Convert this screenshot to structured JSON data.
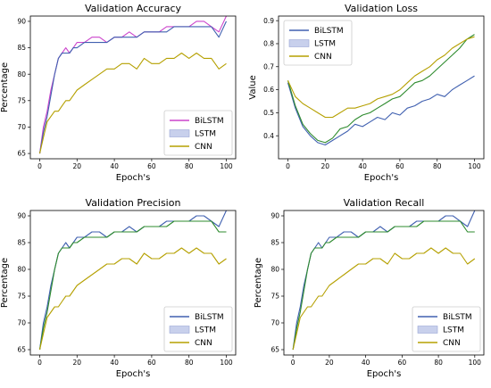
{
  "chart_data": [
    {
      "type": "line",
      "title": "Validation Accuracy",
      "xlabel": "Epoch's",
      "ylabel": "Percentage",
      "xlim": [
        -5,
        105
      ],
      "ylim": [
        64,
        91
      ],
      "xticks": [
        0,
        20,
        40,
        60,
        80,
        100
      ],
      "yticks": [
        65,
        70,
        75,
        80,
        85,
        90
      ],
      "legend": "bottom-right",
      "legend_swatch": [
        "line",
        "patch",
        "line"
      ],
      "series": [
        {
          "name": "BiLSTM",
          "color": "#cc44cc",
          "x": [
            0,
            2,
            4,
            6,
            8,
            10,
            12,
            14,
            16,
            18,
            20,
            24,
            28,
            32,
            36,
            40,
            44,
            48,
            52,
            56,
            60,
            64,
            68,
            72,
            76,
            80,
            84,
            88,
            92,
            96,
            100
          ],
          "y": [
            65,
            70,
            73,
            77,
            80,
            83,
            84,
            85,
            84,
            85,
            86,
            86,
            87,
            87,
            86,
            87,
            87,
            88,
            87,
            88,
            88,
            88,
            89,
            89,
            89,
            89,
            90,
            90,
            89,
            88,
            91
          ]
        },
        {
          "name": "LSTM",
          "color": "#4060b0",
          "x": [
            0,
            2,
            4,
            6,
            8,
            10,
            12,
            14,
            16,
            18,
            20,
            24,
            28,
            32,
            36,
            40,
            44,
            48,
            52,
            56,
            60,
            64,
            68,
            72,
            76,
            80,
            84,
            88,
            92,
            96,
            100
          ],
          "y": [
            65,
            69,
            72,
            76,
            80,
            83,
            84,
            84,
            84,
            85,
            85,
            86,
            86,
            86,
            86,
            87,
            87,
            87,
            87,
            88,
            88,
            88,
            88,
            89,
            89,
            89,
            89,
            89,
            89,
            87,
            90
          ]
        },
        {
          "name": "CNN",
          "color": "#b5a000",
          "x": [
            0,
            2,
            4,
            6,
            8,
            10,
            12,
            14,
            16,
            18,
            20,
            24,
            28,
            32,
            36,
            40,
            44,
            48,
            52,
            56,
            60,
            64,
            68,
            72,
            76,
            80,
            84,
            88,
            92,
            96,
            100
          ],
          "y": [
            65,
            68,
            71,
            72,
            73,
            73,
            74,
            75,
            75,
            76,
            77,
            78,
            79,
            80,
            81,
            81,
            82,
            82,
            81,
            83,
            82,
            82,
            83,
            83,
            84,
            83,
            84,
            83,
            83,
            81,
            82
          ]
        }
      ]
    },
    {
      "type": "line",
      "title": "Validation Loss",
      "xlabel": "Epoch's",
      "ylabel": "Value",
      "xlim": [
        -5,
        105
      ],
      "ylim": [
        0.3,
        0.92
      ],
      "xticks": [
        0,
        20,
        40,
        60,
        80,
        100
      ],
      "yticks": [
        0.4,
        0.5,
        0.6,
        0.7,
        0.8,
        0.9
      ],
      "legend": "top-left",
      "legend_swatch": [
        "line",
        "patch",
        "line"
      ],
      "series": [
        {
          "name": "BiLSTM",
          "color": "#4060b0",
          "x": [
            0,
            4,
            8,
            12,
            16,
            20,
            24,
            28,
            32,
            36,
            40,
            44,
            48,
            52,
            56,
            60,
            64,
            68,
            72,
            76,
            80,
            84,
            88,
            92,
            96,
            100
          ],
          "y": [
            0.63,
            0.52,
            0.44,
            0.4,
            0.37,
            0.36,
            0.38,
            0.4,
            0.42,
            0.45,
            0.44,
            0.46,
            0.48,
            0.47,
            0.5,
            0.49,
            0.52,
            0.53,
            0.55,
            0.56,
            0.58,
            0.57,
            0.6,
            0.62,
            0.64,
            0.66
          ]
        },
        {
          "name": "LSTM",
          "color": "#2e8b2e",
          "x": [
            0,
            4,
            8,
            12,
            16,
            20,
            24,
            28,
            32,
            36,
            40,
            44,
            48,
            52,
            56,
            60,
            64,
            68,
            72,
            76,
            80,
            84,
            88,
            92,
            96,
            100
          ],
          "y": [
            0.64,
            0.53,
            0.45,
            0.41,
            0.38,
            0.37,
            0.39,
            0.43,
            0.44,
            0.47,
            0.49,
            0.5,
            0.52,
            0.54,
            0.56,
            0.57,
            0.6,
            0.63,
            0.64,
            0.66,
            0.69,
            0.72,
            0.75,
            0.78,
            0.82,
            0.84
          ]
        },
        {
          "name": "CNN",
          "color": "#b5a000",
          "x": [
            0,
            4,
            8,
            12,
            16,
            20,
            24,
            28,
            32,
            36,
            40,
            44,
            48,
            52,
            56,
            60,
            64,
            68,
            72,
            76,
            80,
            84,
            88,
            92,
            96,
            100
          ],
          "y": [
            0.64,
            0.57,
            0.54,
            0.52,
            0.5,
            0.48,
            0.48,
            0.5,
            0.52,
            0.52,
            0.53,
            0.54,
            0.56,
            0.57,
            0.58,
            0.6,
            0.63,
            0.66,
            0.68,
            0.7,
            0.73,
            0.75,
            0.78,
            0.8,
            0.82,
            0.83
          ]
        }
      ]
    },
    {
      "type": "line",
      "title": "Validation Precision",
      "xlabel": "Epoch's",
      "ylabel": "Percentage",
      "xlim": [
        -5,
        105
      ],
      "ylim": [
        64,
        91
      ],
      "xticks": [
        0,
        20,
        40,
        60,
        80,
        100
      ],
      "yticks": [
        65,
        70,
        75,
        80,
        85,
        90
      ],
      "legend": "bottom-right",
      "legend_swatch": [
        "line",
        "patch",
        "line"
      ],
      "series": [
        {
          "name": "BiLSTM",
          "color": "#4060b0",
          "x": [
            0,
            2,
            4,
            6,
            8,
            10,
            12,
            14,
            16,
            18,
            20,
            24,
            28,
            32,
            36,
            40,
            44,
            48,
            52,
            56,
            60,
            64,
            68,
            72,
            76,
            80,
            84,
            88,
            92,
            96,
            100
          ],
          "y": [
            65,
            70,
            73,
            77,
            80,
            83,
            84,
            85,
            84,
            85,
            86,
            86,
            87,
            87,
            86,
            87,
            87,
            88,
            87,
            88,
            88,
            88,
            89,
            89,
            89,
            89,
            90,
            90,
            89,
            88,
            91
          ]
        },
        {
          "name": "LSTM",
          "color": "#2e8b2e",
          "x": [
            0,
            2,
            4,
            6,
            8,
            10,
            12,
            14,
            16,
            18,
            20,
            24,
            28,
            32,
            36,
            40,
            44,
            48,
            52,
            56,
            60,
            64,
            68,
            72,
            76,
            80,
            84,
            88,
            92,
            96,
            100
          ],
          "y": [
            65,
            69,
            72,
            76,
            80,
            83,
            84,
            84,
            84,
            85,
            85,
            86,
            86,
            86,
            86,
            87,
            87,
            87,
            87,
            88,
            88,
            88,
            88,
            89,
            89,
            89,
            89,
            89,
            89,
            87,
            87
          ]
        },
        {
          "name": "CNN",
          "color": "#b5a000",
          "x": [
            0,
            2,
            4,
            6,
            8,
            10,
            12,
            14,
            16,
            18,
            20,
            24,
            28,
            32,
            36,
            40,
            44,
            48,
            52,
            56,
            60,
            64,
            68,
            72,
            76,
            80,
            84,
            88,
            92,
            96,
            100
          ],
          "y": [
            65,
            68,
            71,
            72,
            73,
            73,
            74,
            75,
            75,
            76,
            77,
            78,
            79,
            80,
            81,
            81,
            82,
            82,
            81,
            83,
            82,
            82,
            83,
            83,
            84,
            83,
            84,
            83,
            83,
            81,
            82
          ]
        }
      ]
    },
    {
      "type": "line",
      "title": "Validation Recall",
      "xlabel": "Epoch's",
      "ylabel": "Percentage",
      "xlim": [
        -5,
        105
      ],
      "ylim": [
        64,
        91
      ],
      "xticks": [
        0,
        20,
        40,
        60,
        80,
        100
      ],
      "yticks": [
        65,
        70,
        75,
        80,
        85,
        90
      ],
      "legend": "bottom-right",
      "legend_swatch": [
        "line",
        "patch",
        "line"
      ],
      "series": [
        {
          "name": "BiLSTM",
          "color": "#4060b0",
          "x": [
            0,
            2,
            4,
            6,
            8,
            10,
            12,
            14,
            16,
            18,
            20,
            24,
            28,
            32,
            36,
            40,
            44,
            48,
            52,
            56,
            60,
            64,
            68,
            72,
            76,
            80,
            84,
            88,
            92,
            96,
            100
          ],
          "y": [
            65,
            70,
            73,
            77,
            80,
            83,
            84,
            85,
            84,
            85,
            86,
            86,
            87,
            87,
            86,
            87,
            87,
            88,
            87,
            88,
            88,
            88,
            89,
            89,
            89,
            89,
            90,
            90,
            89,
            88,
            91
          ]
        },
        {
          "name": "LSTM",
          "color": "#2e8b2e",
          "x": [
            0,
            2,
            4,
            6,
            8,
            10,
            12,
            14,
            16,
            18,
            20,
            24,
            28,
            32,
            36,
            40,
            44,
            48,
            52,
            56,
            60,
            64,
            68,
            72,
            76,
            80,
            84,
            88,
            92,
            96,
            100
          ],
          "y": [
            65,
            69,
            72,
            76,
            80,
            83,
            84,
            84,
            84,
            85,
            85,
            86,
            86,
            86,
            86,
            87,
            87,
            87,
            87,
            88,
            88,
            88,
            88,
            89,
            89,
            89,
            89,
            89,
            89,
            87,
            87
          ]
        },
        {
          "name": "CNN",
          "color": "#b5a000",
          "x": [
            0,
            2,
            4,
            6,
            8,
            10,
            12,
            14,
            16,
            18,
            20,
            24,
            28,
            32,
            36,
            40,
            44,
            48,
            52,
            56,
            60,
            64,
            68,
            72,
            76,
            80,
            84,
            88,
            92,
            96,
            100
          ],
          "y": [
            65,
            68,
            71,
            72,
            73,
            73,
            74,
            75,
            75,
            76,
            77,
            78,
            79,
            80,
            81,
            81,
            82,
            82,
            81,
            83,
            82,
            82,
            83,
            83,
            84,
            83,
            84,
            83,
            83,
            81,
            82
          ]
        }
      ]
    }
  ],
  "legend_patch_color": "#c8d0ec"
}
